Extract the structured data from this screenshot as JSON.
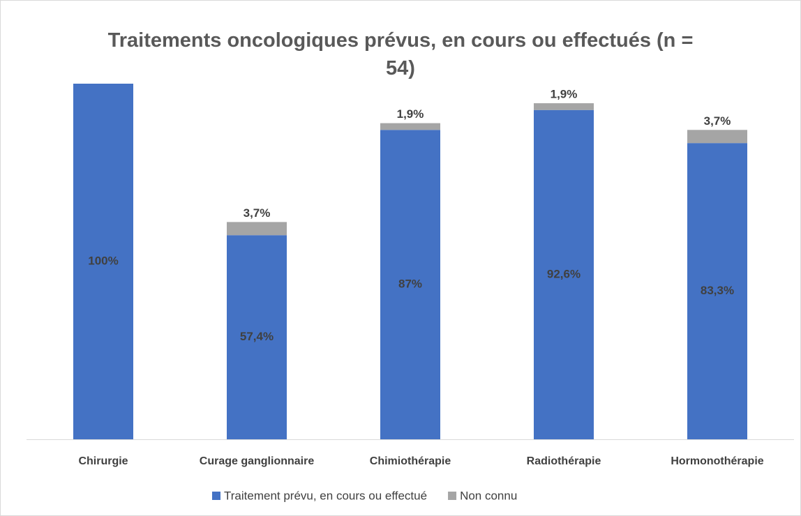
{
  "chart_data": {
    "type": "stacked_bar",
    "title": "Traitements oncologiques prévus, en cours ou effectués (n = 54)",
    "categories": [
      "Chirurgie",
      "Curage ganglionnaire",
      "Chimiothérapie",
      "Radiothérapie",
      "Hormonothérapie"
    ],
    "series": [
      {
        "name": "Traitement prévu, en cours ou effectué",
        "color": "#4472c4",
        "values": [
          100,
          57.4,
          87,
          92.6,
          83.3
        ],
        "value_labels": [
          "100%",
          "57,4%",
          "87%",
          "92,6%",
          "83,3%"
        ]
      },
      {
        "name": "Non connu",
        "color": "#a5a5a5",
        "values": [
          null,
          3.7,
          1.9,
          1.9,
          3.7
        ],
        "value_labels": [
          null,
          "3,7%",
          "1,9%",
          "1,9%",
          "3,7%"
        ]
      }
    ],
    "legend": "bottom"
  }
}
